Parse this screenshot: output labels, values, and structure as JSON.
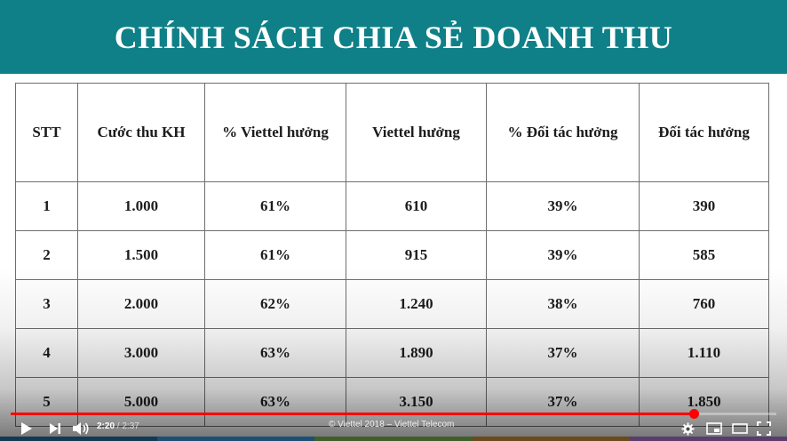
{
  "slide": {
    "title": "CHÍNH SÁCH CHIA SẺ DOANH THU",
    "table": {
      "headers": [
        "STT",
        "Cước thu KH",
        "% Viettel hưởng",
        "Viettel hưởng",
        "% Đối tác hưởng",
        "Đối tác hưởng"
      ],
      "rows": [
        [
          "1",
          "1.000",
          "61%",
          "610",
          "39%",
          "390"
        ],
        [
          "2",
          "1.500",
          "61%",
          "915",
          "39%",
          "585"
        ],
        [
          "3",
          "2.000",
          "62%",
          "1.240",
          "38%",
          "760"
        ],
        [
          "4",
          "3.000",
          "63%",
          "1.890",
          "37%",
          "1.110"
        ],
        [
          "5",
          "5.000",
          "63%",
          "3.150",
          "37%",
          "1.850"
        ]
      ]
    }
  },
  "player": {
    "current_time": "2:20",
    "separator": " / ",
    "duration": "2:37",
    "progress_fraction": 0.892,
    "caption": "© Viettel 2018 – Viettel Telecom",
    "accent_color": "#ff0000",
    "buttons": [
      "play-icon",
      "next-icon",
      "volume-icon",
      "gear-icon",
      "miniplayer-icon",
      "theater-icon",
      "fullscreen-icon"
    ]
  },
  "colors": {
    "banner": "#0f8088",
    "bottom_strip": [
      "#123a52",
      "#1b4f73",
      "#3f5f2a",
      "#6b4a1e",
      "#5a3d6a"
    ]
  }
}
